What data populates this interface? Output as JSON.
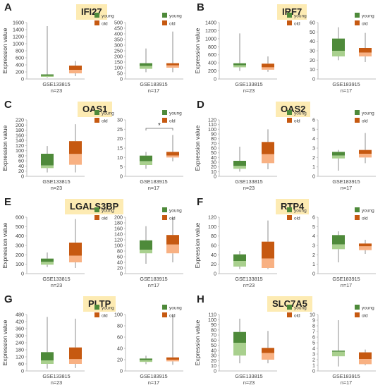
{
  "colors": {
    "young_dark": "#4e8a3a",
    "young_light": "#a9d08e",
    "old_dark": "#c65911",
    "old_light": "#f8b183",
    "whisker": "#8c8c8c",
    "axis": "#bfbfbf"
  },
  "legend": {
    "young": "young",
    "old": "old"
  },
  "ylabel": "Expression value",
  "chart_data": [
    {
      "panel": "A",
      "gene": "IFI27",
      "type": "box",
      "ylabel": "Expression value",
      "charts": [
        {
          "dataset": "GSE133815",
          "n": "n=23",
          "ylim": [
            0,
            1600
          ],
          "ticks": [
            0,
            200,
            400,
            600,
            800,
            1000,
            1200,
            1400,
            1600
          ],
          "boxes": [
            {
              "group": "young",
              "min": 40,
              "q1": 60,
              "median": 90,
              "q3": 130,
              "max": 1500
            },
            {
              "group": "old",
              "min": 80,
              "q1": 160,
              "median": 260,
              "q3": 380,
              "max": 510
            }
          ]
        },
        {
          "dataset": "GSE183915",
          "n": "n=17",
          "ylim": [
            0,
            500
          ],
          "ticks": [
            0,
            50,
            100,
            150,
            200,
            250,
            300,
            350,
            400,
            450,
            500
          ],
          "boxes": [
            {
              "group": "young",
              "min": 60,
              "q1": 90,
              "median": 115,
              "q3": 140,
              "max": 270
            },
            {
              "group": "old",
              "min": 60,
              "q1": 100,
              "median": 120,
              "q3": 140,
              "max": 420
            }
          ]
        }
      ]
    },
    {
      "panel": "B",
      "gene": "IRF7",
      "type": "box",
      "ylabel": "Expression value",
      "charts": [
        {
          "dataset": "GSE133815",
          "n": "n=23",
          "ylim": [
            0,
            1400
          ],
          "ticks": [
            0,
            200,
            400,
            600,
            800,
            1000,
            1200,
            1400
          ],
          "boxes": [
            {
              "group": "young",
              "min": 200,
              "q1": 290,
              "median": 340,
              "q3": 390,
              "max": 1130
            },
            {
              "group": "old",
              "min": 180,
              "q1": 230,
              "median": 290,
              "q3": 380,
              "max": 560
            }
          ]
        },
        {
          "dataset": "GSE183915",
          "n": "n=17",
          "ylim": [
            0,
            60
          ],
          "ticks": [
            0,
            10,
            20,
            30,
            40,
            50,
            60
          ],
          "boxes": [
            {
              "group": "young",
              "min": 20,
              "q1": 24,
              "median": 30,
              "q3": 43,
              "max": 55
            },
            {
              "group": "old",
              "min": 18,
              "q1": 24,
              "median": 28,
              "q3": 33,
              "max": 49
            }
          ]
        }
      ]
    },
    {
      "panel": "C",
      "gene": "OAS1",
      "type": "box",
      "ylabel": "Expression value",
      "charts": [
        {
          "dataset": "GSE133815",
          "n": "n=23",
          "ylim": [
            0,
            220
          ],
          "ticks": [
            0,
            20,
            40,
            60,
            80,
            100,
            120,
            140,
            160,
            180,
            200,
            220
          ],
          "boxes": [
            {
              "group": "young",
              "min": 15,
              "q1": 32,
              "median": 42,
              "q3": 88,
              "max": 118
            },
            {
              "group": "old",
              "min": 15,
              "q1": 45,
              "median": 87,
              "q3": 137,
              "max": 203
            }
          ]
        },
        {
          "dataset": "GSE183915",
          "n": "n=17",
          "ylim": [
            0,
            30
          ],
          "ticks": [
            0,
            5,
            10,
            15,
            20,
            25,
            30
          ],
          "significance": "*",
          "boxes": [
            {
              "group": "young",
              "min": 4,
              "q1": 6,
              "median": 8,
              "q3": 11,
              "max": 13
            },
            {
              "group": "old",
              "min": 8,
              "q1": 10,
              "median": 11,
              "q3": 13,
              "max": 22
            }
          ]
        }
      ]
    },
    {
      "panel": "D",
      "gene": "OAS2",
      "type": "box",
      "ylabel": "Expression value",
      "charts": [
        {
          "dataset": "GSE133815",
          "n": "n=23",
          "ylim": [
            0,
            120
          ],
          "ticks": [
            0,
            10,
            20,
            30,
            40,
            50,
            60,
            70,
            80,
            90,
            100,
            110,
            120
          ],
          "boxes": [
            {
              "group": "young",
              "min": 10,
              "q1": 16,
              "median": 22,
              "q3": 33,
              "max": 63
            },
            {
              "group": "old",
              "min": 15,
              "q1": 28,
              "median": 47,
              "q3": 73,
              "max": 100
            }
          ]
        },
        {
          "dataset": "GSE183915",
          "n": "n=17",
          "ylim": [
            0,
            6
          ],
          "ticks": [
            0,
            1,
            2,
            3,
            4,
            5,
            6
          ],
          "boxes": [
            {
              "group": "young",
              "min": 0.6,
              "q1": 1.9,
              "median": 2.2,
              "q3": 2.6,
              "max": 2.8
            },
            {
              "group": "old",
              "min": 1.4,
              "q1": 2.0,
              "median": 2.4,
              "q3": 2.8,
              "max": 4.6
            }
          ]
        }
      ]
    },
    {
      "panel": "E",
      "gene": "LGALS3BP",
      "type": "box",
      "ylabel": "Expression value",
      "charts": [
        {
          "dataset": "GSE133815",
          "n": "n=23",
          "ylim": [
            0,
            600
          ],
          "ticks": [
            0,
            100,
            200,
            300,
            400,
            500,
            600
          ],
          "boxes": [
            {
              "group": "young",
              "min": 70,
              "q1": 95,
              "median": 125,
              "q3": 160,
              "max": 225
            },
            {
              "group": "old",
              "min": 60,
              "q1": 120,
              "median": 190,
              "q3": 330,
              "max": 580
            }
          ]
        },
        {
          "dataset": "GSE183915",
          "n": "n=17",
          "ylim": [
            0,
            200
          ],
          "ticks": [
            0,
            20,
            40,
            60,
            80,
            100,
            120,
            140,
            160,
            180,
            200
          ],
          "boxes": [
            {
              "group": "young",
              "min": 35,
              "q1": 72,
              "median": 85,
              "q3": 118,
              "max": 168
            },
            {
              "group": "old",
              "min": 40,
              "q1": 72,
              "median": 103,
              "q3": 137,
              "max": 198
            }
          ]
        }
      ]
    },
    {
      "panel": "F",
      "gene": "RTP4",
      "type": "box",
      "ylabel": "Expression value",
      "charts": [
        {
          "dataset": "GSE133815",
          "n": "n=23",
          "ylim": [
            0,
            120
          ],
          "ticks": [
            0,
            20,
            40,
            60,
            80,
            100,
            120
          ],
          "boxes": [
            {
              "group": "young",
              "min": 10,
              "q1": 15,
              "median": 27,
              "q3": 41,
              "max": 48
            },
            {
              "group": "old",
              "min": 10,
              "q1": 12,
              "median": 32,
              "q3": 68,
              "max": 113
            }
          ]
        },
        {
          "dataset": "GSE183915",
          "n": "n=17",
          "ylim": [
            0,
            6
          ],
          "ticks": [
            0,
            1,
            2,
            3,
            4,
            5,
            6
          ],
          "boxes": [
            {
              "group": "young",
              "min": 1.2,
              "q1": 2.6,
              "median": 3.1,
              "q3": 4.1,
              "max": 4.5
            },
            {
              "group": "old",
              "min": 2.1,
              "q1": 2.5,
              "median": 2.9,
              "q3": 3.2,
              "max": 3.6
            }
          ]
        }
      ]
    },
    {
      "panel": "G",
      "gene": "PLTP",
      "type": "box",
      "ylabel": "Expression value",
      "charts": [
        {
          "dataset": "GSE133815",
          "n": "n=23",
          "ylim": [
            0,
            480
          ],
          "ticks": [
            0,
            60,
            120,
            180,
            240,
            300,
            360,
            420,
            480
          ],
          "boxes": [
            {
              "group": "young",
              "min": 20,
              "q1": 60,
              "median": 90,
              "q3": 160,
              "max": 460
            },
            {
              "group": "old",
              "min": 25,
              "q1": 60,
              "median": 100,
              "q3": 200,
              "max": 445
            }
          ]
        },
        {
          "dataset": "GSE183915",
          "n": "n=17",
          "ylim": [
            0,
            100
          ],
          "ticks": [
            0,
            20,
            40,
            60,
            80,
            100
          ],
          "boxes": [
            {
              "group": "young",
              "min": 12,
              "q1": 16,
              "median": 19,
              "q3": 22,
              "max": 27
            },
            {
              "group": "old",
              "min": 11,
              "q1": 17,
              "median": 20,
              "q3": 24,
              "max": 98
            }
          ]
        }
      ]
    },
    {
      "panel": "H",
      "gene": "SLC7A5",
      "type": "box",
      "ylabel": "Expression value",
      "charts": [
        {
          "dataset": "GSE133815",
          "n": "n=23",
          "ylim": [
            0,
            110
          ],
          "ticks": [
            0,
            10,
            20,
            30,
            40,
            50,
            60,
            70,
            80,
            90,
            100,
            110
          ],
          "boxes": [
            {
              "group": "young",
              "min": 15,
              "q1": 30,
              "median": 55,
              "q3": 76,
              "max": 102
            },
            {
              "group": "old",
              "min": 15,
              "q1": 22,
              "median": 35,
              "q3": 45,
              "max": 78
            }
          ]
        },
        {
          "dataset": "GSE183915",
          "n": "n=17",
          "ylim": [
            0,
            10
          ],
          "ticks": [
            0,
            1,
            2,
            3,
            4,
            5,
            6,
            7,
            8,
            9,
            10
          ],
          "boxes": [
            {
              "group": "young",
              "min": 0.8,
              "q1": 2.6,
              "median": 3.4,
              "q3": 3.6,
              "max": 9.0
            },
            {
              "group": "old",
              "min": 1.0,
              "q1": 1.2,
              "median": 2.1,
              "q3": 3.3,
              "max": 3.8
            }
          ]
        }
      ]
    }
  ]
}
